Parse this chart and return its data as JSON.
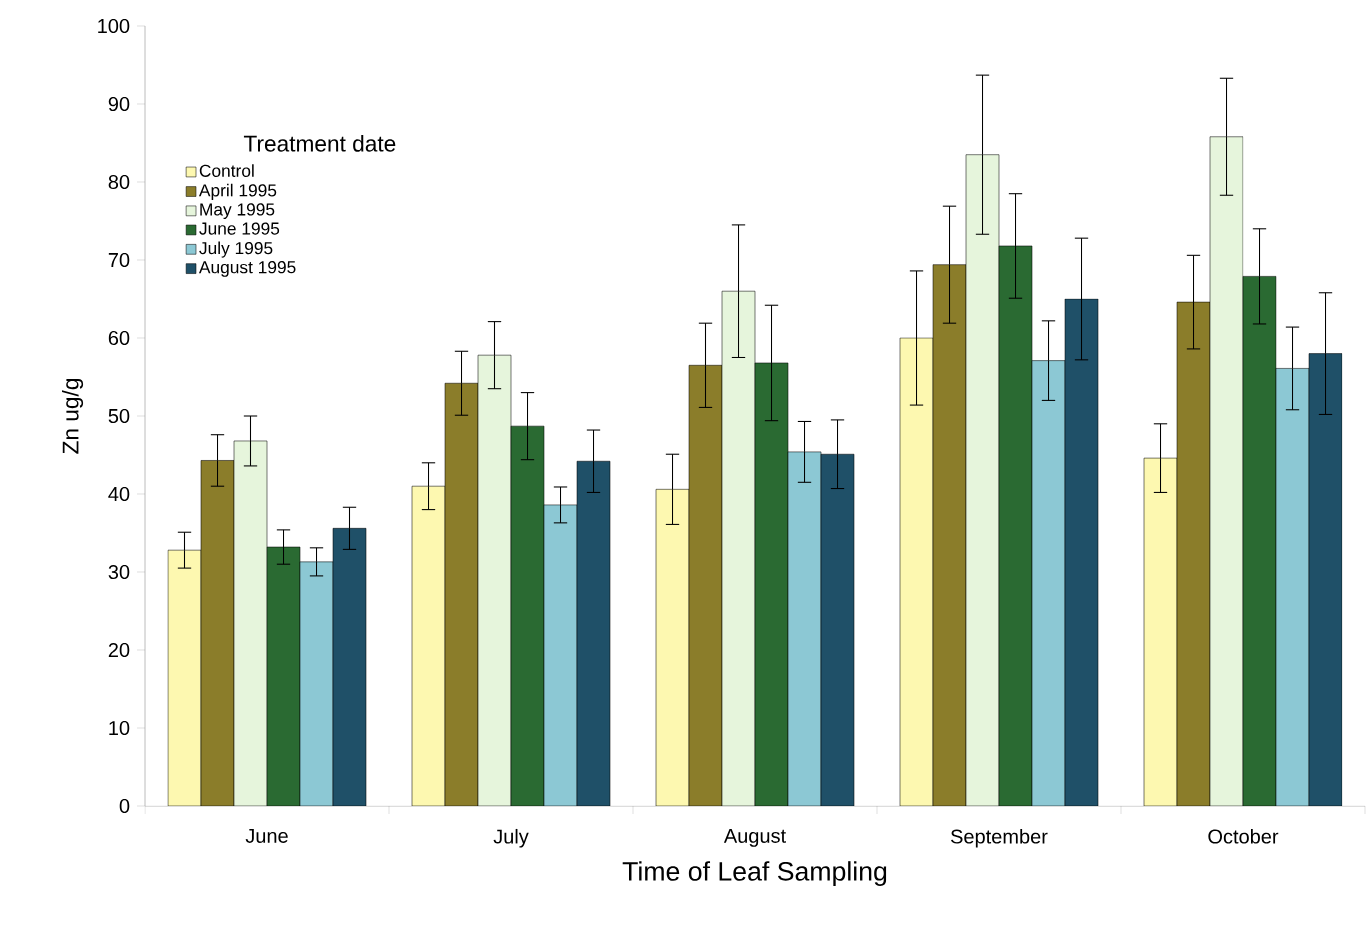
{
  "chart_data": {
    "type": "bar",
    "xlabel": "Time of Leaf Sampling",
    "ylabel": "Zn ug/g",
    "legend_title": "Treatment date",
    "categories": [
      "June",
      "July",
      "August",
      "September",
      "October"
    ],
    "series": [
      {
        "name": "Control",
        "color": "#fdf8b0",
        "values": [
          32.8,
          41,
          40.6,
          60,
          44.6
        ],
        "errors": [
          2.3,
          3,
          4.5,
          8.6,
          4.4
        ]
      },
      {
        "name": "April 1995",
        "color": "#8b7d2a",
        "values": [
          44.3,
          54.2,
          56.5,
          69.4,
          64.6
        ],
        "errors": [
          3.3,
          4.1,
          5.4,
          7.5,
          6
        ]
      },
      {
        "name": "May 1995",
        "color": "#e6f5dc",
        "values": [
          46.8,
          57.8,
          66,
          83.5,
          85.8
        ],
        "errors": [
          3.2,
          4.3,
          8.5,
          10.2,
          7.5
        ]
      },
      {
        "name": "June 1995",
        "color": "#2a6a32",
        "values": [
          33.2,
          48.7,
          56.8,
          71.8,
          67.9
        ],
        "errors": [
          2.2,
          4.3,
          7.4,
          6.7,
          6.1
        ]
      },
      {
        "name": "July 1995",
        "color": "#8cc8d4",
        "values": [
          31.3,
          38.6,
          45.4,
          57.1,
          56.1
        ],
        "errors": [
          1.8,
          2.3,
          3.9,
          5.1,
          5.3
        ]
      },
      {
        "name": "August 1995",
        "color": "#1f5068",
        "values": [
          35.6,
          44.2,
          45.1,
          65,
          58
        ],
        "errors": [
          2.7,
          4,
          4.4,
          7.8,
          7.8
        ]
      }
    ],
    "ylim": [
      0,
      100
    ],
    "yticks": [
      0,
      10,
      20,
      30,
      40,
      50,
      60,
      70,
      80,
      90,
      100
    ],
    "grid": false,
    "legend": "top left"
  }
}
